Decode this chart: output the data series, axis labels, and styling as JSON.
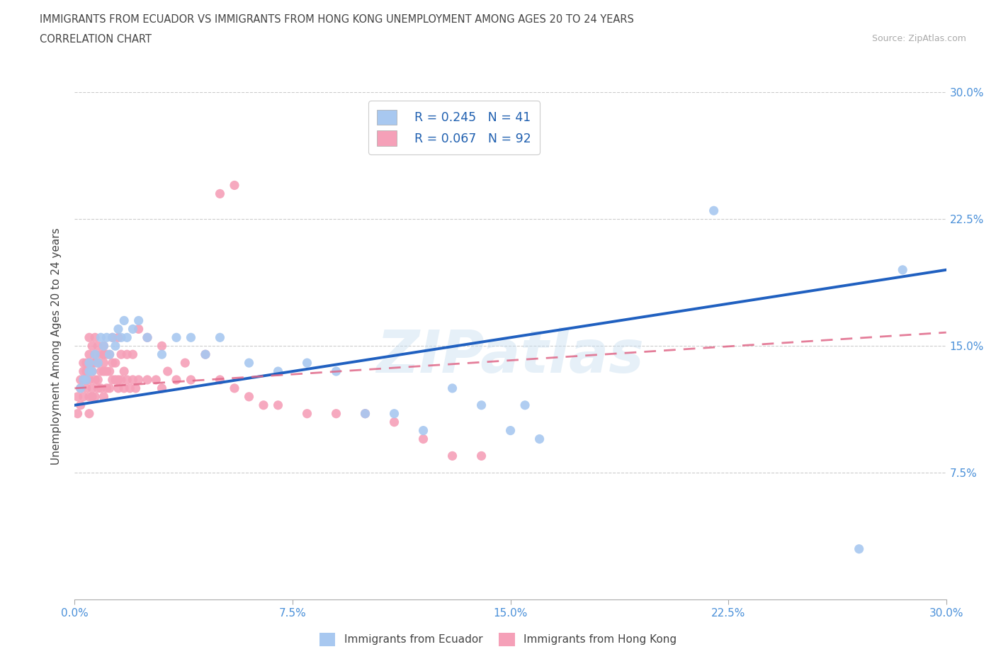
{
  "title_line1": "IMMIGRANTS FROM ECUADOR VS IMMIGRANTS FROM HONG KONG UNEMPLOYMENT AMONG AGES 20 TO 24 YEARS",
  "title_line2": "CORRELATION CHART",
  "source_text": "Source: ZipAtlas.com",
  "ylabel": "Unemployment Among Ages 20 to 24 years",
  "xlim": [
    0.0,
    0.3
  ],
  "ylim": [
    0.0,
    0.3
  ],
  "xtick_labels": [
    "0.0%",
    "7.5%",
    "15.0%",
    "22.5%",
    "30.0%"
  ],
  "xtick_vals": [
    0.0,
    0.075,
    0.15,
    0.225,
    0.3
  ],
  "ytick_labels": [
    "7.5%",
    "15.0%",
    "22.5%",
    "30.0%"
  ],
  "ytick_vals": [
    0.075,
    0.15,
    0.225,
    0.3
  ],
  "legend_ecuador_R": "R = 0.245",
  "legend_ecuador_N": "N = 41",
  "legend_honkong_R": "R = 0.067",
  "legend_honkong_N": "N = 92",
  "ecuador_color": "#a8c8f0",
  "ecuador_line_color": "#2060c0",
  "honkong_color": "#f5a0b8",
  "honkong_line_color": "#e06888",
  "watermark": "ZIPatlas",
  "ecuador_x": [
    0.002,
    0.003,
    0.004,
    0.005,
    0.005,
    0.006,
    0.007,
    0.008,
    0.009,
    0.01,
    0.011,
    0.012,
    0.013,
    0.014,
    0.015,
    0.016,
    0.017,
    0.018,
    0.02,
    0.022,
    0.025,
    0.03,
    0.035,
    0.04,
    0.045,
    0.05,
    0.06,
    0.07,
    0.08,
    0.09,
    0.1,
    0.11,
    0.12,
    0.13,
    0.14,
    0.15,
    0.155,
    0.16,
    0.22,
    0.27,
    0.285
  ],
  "ecuador_y": [
    0.125,
    0.13,
    0.13,
    0.135,
    0.14,
    0.135,
    0.145,
    0.14,
    0.155,
    0.15,
    0.155,
    0.145,
    0.155,
    0.15,
    0.16,
    0.155,
    0.165,
    0.155,
    0.16,
    0.165,
    0.155,
    0.145,
    0.155,
    0.155,
    0.145,
    0.155,
    0.14,
    0.135,
    0.14,
    0.135,
    0.11,
    0.11,
    0.1,
    0.125,
    0.115,
    0.1,
    0.115,
    0.095,
    0.23,
    0.03,
    0.195
  ],
  "honkong_x": [
    0.001,
    0.001,
    0.002,
    0.002,
    0.002,
    0.003,
    0.003,
    0.003,
    0.003,
    0.004,
    0.004,
    0.004,
    0.004,
    0.005,
    0.005,
    0.005,
    0.005,
    0.005,
    0.005,
    0.005,
    0.006,
    0.006,
    0.006,
    0.006,
    0.006,
    0.007,
    0.007,
    0.007,
    0.007,
    0.007,
    0.008,
    0.008,
    0.008,
    0.008,
    0.009,
    0.009,
    0.009,
    0.01,
    0.01,
    0.01,
    0.01,
    0.01,
    0.011,
    0.011,
    0.011,
    0.012,
    0.012,
    0.012,
    0.013,
    0.013,
    0.013,
    0.014,
    0.014,
    0.015,
    0.015,
    0.015,
    0.016,
    0.016,
    0.017,
    0.017,
    0.018,
    0.018,
    0.019,
    0.02,
    0.02,
    0.021,
    0.022,
    0.022,
    0.025,
    0.025,
    0.028,
    0.03,
    0.03,
    0.032,
    0.035,
    0.038,
    0.04,
    0.045,
    0.05,
    0.055,
    0.06,
    0.065,
    0.07,
    0.08,
    0.09,
    0.1,
    0.11,
    0.12,
    0.13,
    0.14,
    0.05,
    0.055
  ],
  "honkong_y": [
    0.11,
    0.12,
    0.115,
    0.125,
    0.13,
    0.12,
    0.13,
    0.135,
    0.14,
    0.125,
    0.13,
    0.135,
    0.14,
    0.11,
    0.12,
    0.13,
    0.135,
    0.14,
    0.145,
    0.155,
    0.12,
    0.125,
    0.135,
    0.14,
    0.15,
    0.12,
    0.13,
    0.14,
    0.145,
    0.155,
    0.125,
    0.13,
    0.14,
    0.15,
    0.125,
    0.135,
    0.145,
    0.12,
    0.135,
    0.14,
    0.145,
    0.15,
    0.125,
    0.135,
    0.145,
    0.125,
    0.135,
    0.145,
    0.13,
    0.14,
    0.155,
    0.13,
    0.14,
    0.125,
    0.13,
    0.155,
    0.13,
    0.145,
    0.125,
    0.135,
    0.13,
    0.145,
    0.125,
    0.13,
    0.145,
    0.125,
    0.13,
    0.16,
    0.13,
    0.155,
    0.13,
    0.125,
    0.15,
    0.135,
    0.13,
    0.14,
    0.13,
    0.145,
    0.13,
    0.125,
    0.12,
    0.115,
    0.115,
    0.11,
    0.11,
    0.11,
    0.105,
    0.095,
    0.085,
    0.085,
    0.24,
    0.245
  ]
}
